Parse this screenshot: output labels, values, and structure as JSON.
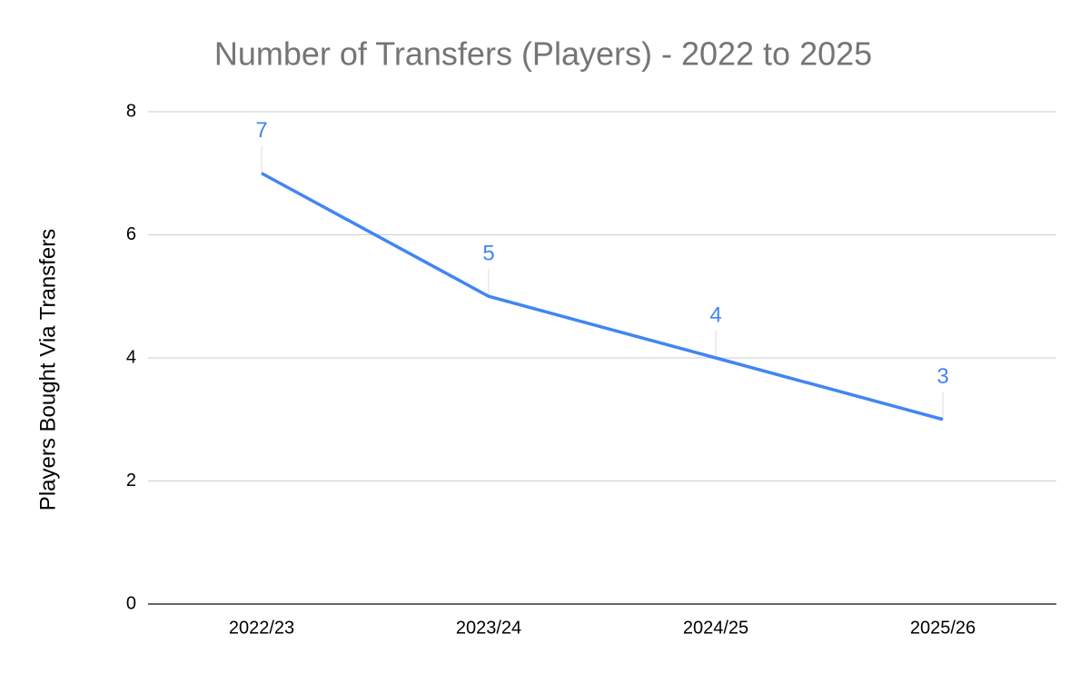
{
  "chart_data": {
    "type": "line",
    "title": "Number of Transfers (Players) - 2022 to 2025",
    "y_label": "Players Bought Via Transfers",
    "categories": [
      "2022/23",
      "2023/24",
      "2024/25",
      "2025/26"
    ],
    "series": [
      {
        "name": "Players Bought Via Transfers",
        "color": "#4285f4",
        "values": [
          7,
          5,
          4,
          3
        ]
      }
    ],
    "ylim": [
      0,
      8
    ],
    "yticks": [
      0,
      2,
      4,
      6,
      8
    ],
    "grid": true
  }
}
